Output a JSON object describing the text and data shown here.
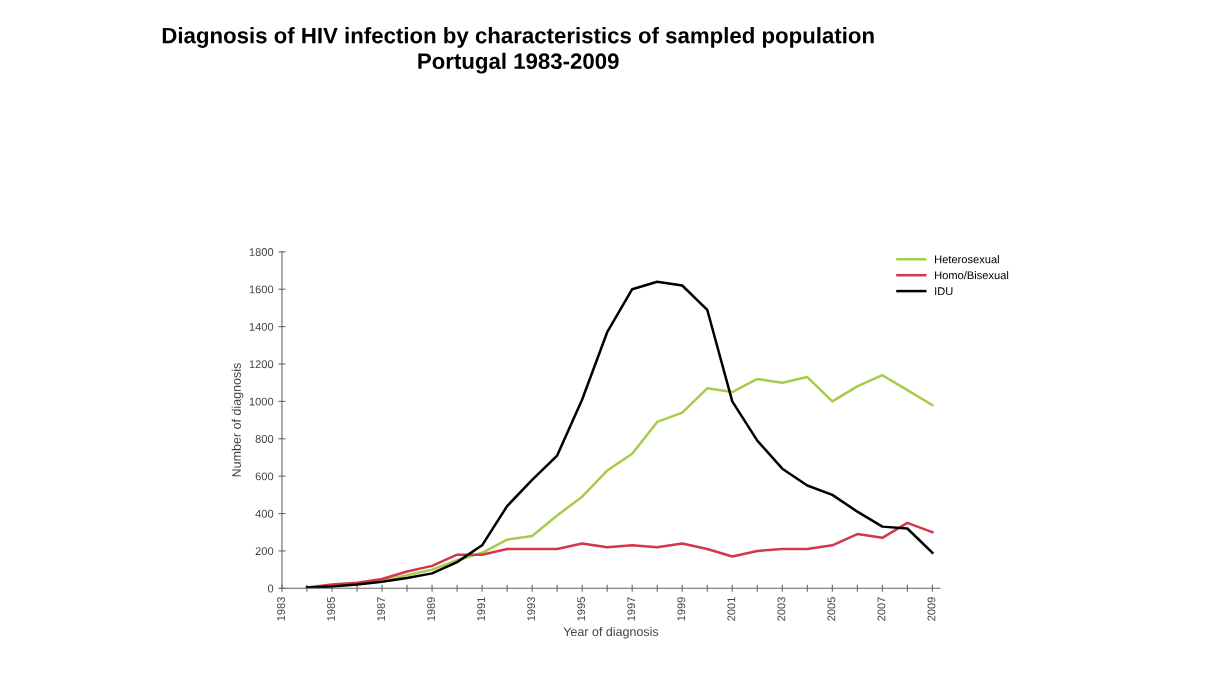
{
  "chart_data": {
    "type": "line",
    "title": "Diagnosis of HIV infection by characteristics of sampled population\nPortugal 1983-2009",
    "xlabel": "Year of diagnosis",
    "ylabel": "Number of diagnosis",
    "x": [
      1984,
      1985,
      1986,
      1987,
      1988,
      1989,
      1990,
      1991,
      1992,
      1993,
      1994,
      1995,
      1996,
      1997,
      1998,
      1999,
      2000,
      2001,
      2002,
      2003,
      2004,
      2005,
      2006,
      2007,
      2008,
      2009
    ],
    "series": [
      {
        "name": "Heterosexual",
        "color": "#a6cc4a",
        "values": [
          null,
          null,
          20,
          40,
          70,
          100,
          150,
          190,
          260,
          280,
          390,
          490,
          630,
          720,
          890,
          940,
          1070,
          1050,
          1120,
          1100,
          1130,
          1000,
          1080,
          1140,
          1060,
          980
        ]
      },
      {
        "name": "Homo/Bisexual",
        "color": "#d2384a",
        "values": [
          5,
          20,
          30,
          50,
          90,
          120,
          180,
          180,
          210,
          210,
          210,
          240,
          220,
          230,
          220,
          240,
          210,
          170,
          200,
          210,
          210,
          230,
          290,
          270,
          350,
          300
        ]
      },
      {
        "name": "IDU",
        "color": "#000000",
        "values": [
          5,
          10,
          20,
          35,
          55,
          80,
          140,
          230,
          440,
          580,
          710,
          1010,
          1370,
          1600,
          1640,
          1620,
          1490,
          1000,
          790,
          640,
          550,
          500,
          410,
          330,
          320,
          190
        ]
      }
    ],
    "xlim": [
      1983,
      2009.3
    ],
    "xticks": [
      1983,
      {
        "value": 1984,
        "label": null
      },
      1985,
      {
        "value": 1986,
        "label": null
      },
      1987,
      {
        "value": 1988,
        "label": null
      },
      1989,
      {
        "value": 1990,
        "label": null
      },
      1991,
      {
        "value": 1992,
        "label": null
      },
      1993,
      {
        "value": 1994,
        "label": null
      },
      1995,
      {
        "value": 1996,
        "label": null
      },
      1997,
      {
        "value": 1998,
        "label": null
      },
      1999,
      {
        "value": 2000,
        "label": null
      },
      2001,
      {
        "value": 2002,
        "label": null
      },
      2003,
      {
        "value": 2004,
        "label": null
      },
      2005,
      {
        "value": 2006,
        "label": null
      },
      2007,
      {
        "value": 2008,
        "label": null
      },
      2009
    ],
    "ylim": [
      0,
      1800
    ],
    "yticks": [
      0,
      200,
      400,
      600,
      800,
      1000,
      1200,
      1400,
      1600,
      1800
    ],
    "grid": false,
    "legend": "top right",
    "marker": "none",
    "line_style": "solid"
  }
}
